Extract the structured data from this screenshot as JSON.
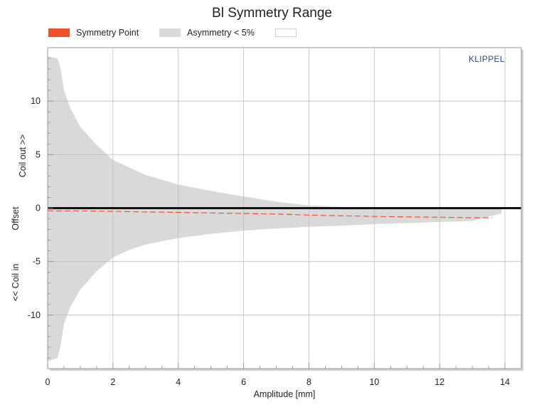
{
  "chart_data": {
    "type": "area",
    "title": "Bl Symmetry Range",
    "xlabel": "Amplitude [mm]",
    "ylabel_parts": [
      "<< Coil in",
      "Offset",
      "Coil out >>"
    ],
    "brand": "KLIPPEL",
    "xlim": [
      0,
      14.5
    ],
    "ylim": [
      -15,
      15
    ],
    "x_ticks": [
      0,
      2,
      4,
      6,
      8,
      10,
      12,
      14
    ],
    "y_ticks": [
      10,
      5,
      0,
      -5,
      -10
    ],
    "grid": true,
    "legend": [
      {
        "label": "Symmetry Point",
        "color": "#f0502a"
      },
      {
        "label": "Asymmetry < 5%",
        "color": "#d9d9d9"
      },
      {
        "label": "",
        "color": "#ffffff"
      }
    ],
    "series": [
      {
        "name": "Asymmetry < 5%",
        "kind": "band",
        "color": "#d9d9d9",
        "x": [
          0.0,
          0.3,
          0.4,
          0.5,
          0.7,
          1.0,
          1.5,
          2.0,
          2.5,
          3.0,
          4.0,
          5.0,
          6.0,
          7.0,
          8.0,
          9.0,
          10.0,
          11.0,
          12.0,
          13.0,
          13.5,
          13.9
        ],
        "upper": [
          14.2,
          14.0,
          13.0,
          11.0,
          9.3,
          7.6,
          5.9,
          4.5,
          3.8,
          3.1,
          2.2,
          1.6,
          1.1,
          0.6,
          0.25,
          0.1,
          0.05,
          0.05,
          0.05,
          0.05,
          0.05,
          0.05
        ],
        "lower": [
          -14.3,
          -14.0,
          -12.8,
          -10.8,
          -9.2,
          -7.6,
          -5.9,
          -4.6,
          -3.9,
          -3.4,
          -2.8,
          -2.4,
          -2.1,
          -1.9,
          -1.75,
          -1.65,
          -1.5,
          -1.4,
          -1.3,
          -1.2,
          -0.8,
          -0.5
        ]
      },
      {
        "name": "Symmetry Point",
        "kind": "dashed-line",
        "color": "#f0502a",
        "x": [
          0,
          1,
          2,
          3,
          4,
          5,
          6,
          7,
          8,
          9,
          10,
          11,
          12,
          13,
          13.6
        ],
        "y": [
          -0.25,
          -0.25,
          -0.3,
          -0.35,
          -0.4,
          -0.45,
          -0.5,
          -0.55,
          -0.65,
          -0.72,
          -0.78,
          -0.82,
          -0.85,
          -0.9,
          -0.9
        ]
      }
    ]
  }
}
